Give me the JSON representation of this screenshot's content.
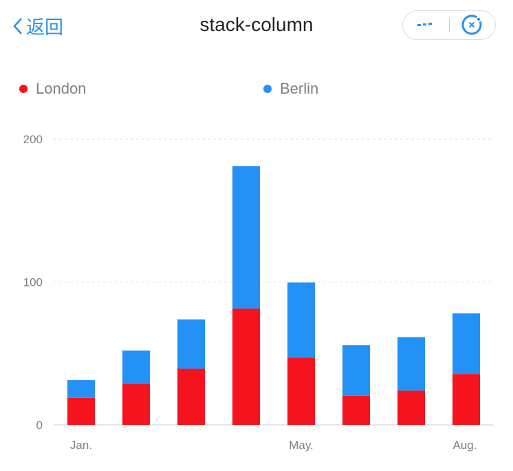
{
  "nav": {
    "back_label": "返回",
    "title": "stack-column",
    "more_icon": "more-dots-icon",
    "close_icon": "close-circle-icon"
  },
  "colors": {
    "London": "#f5141e",
    "Berlin": "#2491f7",
    "accent": "#2a8ff0"
  },
  "chart_data": {
    "type": "bar",
    "stacked": true,
    "categories": [
      "Jan.",
      "",
      "",
      "",
      "May.",
      "",
      "",
      "Aug."
    ],
    "series": [
      {
        "name": "London",
        "values": [
          18.9,
          28.8,
          39.3,
          81.4,
          47,
          20.3,
          24,
          35.6
        ]
      },
      {
        "name": "Berlin",
        "values": [
          12.4,
          23.2,
          34.5,
          99.7,
          52.6,
          35.5,
          37.4,
          42.4
        ]
      }
    ],
    "y_ticks": [
      "0",
      "100",
      "200"
    ],
    "ylim": [
      0,
      200
    ],
    "grid": true,
    "legend_position": "top"
  }
}
